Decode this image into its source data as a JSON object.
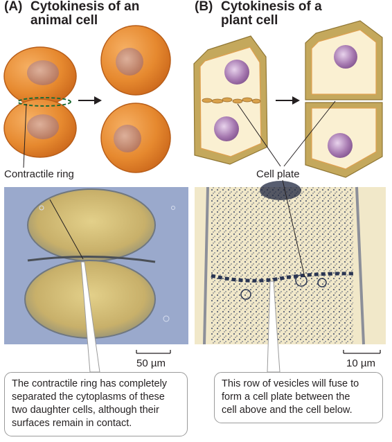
{
  "panels": [
    {
      "letter": "(A)",
      "title_line1": "Cytokinesis of an",
      "title_line2": "animal cell",
      "structure_label": "Contractile ring",
      "scale_bar": "50 µm",
      "caption_lines": [
        "The contractile ring has completely",
        "separated the cytoplasms of these",
        "two daughter cells, although their",
        "surfaces remain in contact."
      ]
    },
    {
      "letter": "(B)",
      "title_line1": "Cytokinesis of a",
      "title_line2": "plant cell",
      "structure_label": "Cell plate",
      "scale_bar": "10 µm",
      "caption_lines": [
        "This row of vesicles will fuse to",
        "form a cell plate between the",
        "cell above and the cell below."
      ]
    }
  ],
  "colors": {
    "animal_cell": "#e6892f",
    "animal_nucleus": "#c9896c",
    "plant_wall": "#c4a85c",
    "plant_cytoplasm": "#faf0d2",
    "plant_nucleus": "#9c6aa6",
    "vesicles": "#d9a24c",
    "micrograph_left_bg": "#9aa9cc",
    "micrograph_right_bg": "#f1e8c9"
  }
}
